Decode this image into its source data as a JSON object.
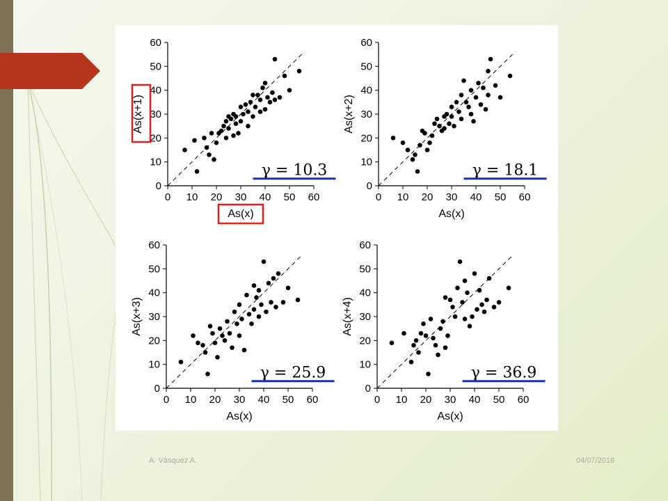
{
  "footer": {
    "author": "A. Vásquez A.",
    "date": "04/07/2018"
  },
  "colors": {
    "sidebar": "#7d7255",
    "arrow": "#b5361c",
    "highlight_box": "#e02020",
    "gamma_underline": "#1a2fb0",
    "points": "#000000"
  },
  "chart_data": [
    {
      "type": "scatter",
      "xlabel": "As(x)",
      "ylabel": "As(x+1)",
      "xlim": [
        0,
        60
      ],
      "ylim": [
        0,
        60
      ],
      "xticks": [
        0,
        10,
        20,
        30,
        40,
        50,
        60
      ],
      "yticks": [
        0,
        10,
        20,
        30,
        40,
        50,
        60
      ],
      "reference_line": "y = x (dashed)",
      "annotation": "γ = 10.3",
      "highlight_labels": true,
      "points": [
        [
          7,
          15
        ],
        [
          11,
          19
        ],
        [
          12,
          6
        ],
        [
          15,
          20
        ],
        [
          16,
          16
        ],
        [
          17,
          13
        ],
        [
          18,
          22
        ],
        [
          19,
          11
        ],
        [
          20,
          18
        ],
        [
          21,
          22
        ],
        [
          22,
          23
        ],
        [
          23,
          25
        ],
        [
          24,
          27
        ],
        [
          24,
          20
        ],
        [
          25,
          29
        ],
        [
          25,
          24
        ],
        [
          26,
          28
        ],
        [
          27,
          30
        ],
        [
          27,
          21
        ],
        [
          28,
          29
        ],
        [
          28,
          26
        ],
        [
          29,
          22
        ],
        [
          30,
          33
        ],
        [
          30,
          27
        ],
        [
          31,
          30
        ],
        [
          32,
          34
        ],
        [
          33,
          31
        ],
        [
          33,
          25
        ],
        [
          34,
          35
        ],
        [
          35,
          38
        ],
        [
          35,
          29
        ],
        [
          36,
          33
        ],
        [
          37,
          38
        ],
        [
          38,
          31
        ],
        [
          38,
          36
        ],
        [
          39,
          41
        ],
        [
          40,
          43
        ],
        [
          40,
          32
        ],
        [
          41,
          37
        ],
        [
          42,
          35
        ],
        [
          43,
          39
        ],
        [
          44,
          53
        ],
        [
          44,
          36
        ],
        [
          46,
          37
        ],
        [
          48,
          46
        ],
        [
          50,
          40
        ],
        [
          54,
          48
        ]
      ]
    },
    {
      "type": "scatter",
      "xlabel": "As(x)",
      "ylabel": "As(x+2)",
      "xlim": [
        0,
        60
      ],
      "ylim": [
        0,
        60
      ],
      "xticks": [
        0,
        10,
        20,
        30,
        40,
        50,
        60
      ],
      "yticks": [
        0,
        10,
        20,
        30,
        40,
        50,
        60
      ],
      "reference_line": "y = x (dashed)",
      "annotation": "γ = 18.1",
      "highlight_labels": false,
      "points": [
        [
          6,
          20
        ],
        [
          10,
          18
        ],
        [
          12,
          15
        ],
        [
          14,
          11
        ],
        [
          15,
          13
        ],
        [
          16,
          6
        ],
        [
          17,
          17
        ],
        [
          18,
          23
        ],
        [
          19,
          22
        ],
        [
          20,
          15
        ],
        [
          21,
          18
        ],
        [
          22,
          21
        ],
        [
          23,
          26
        ],
        [
          24,
          28
        ],
        [
          25,
          25
        ],
        [
          26,
          23
        ],
        [
          27,
          29
        ],
        [
          27,
          24
        ],
        [
          28,
          30
        ],
        [
          29,
          26
        ],
        [
          30,
          33
        ],
        [
          30,
          29
        ],
        [
          31,
          25
        ],
        [
          32,
          35
        ],
        [
          33,
          31
        ],
        [
          34,
          38
        ],
        [
          34,
          28
        ],
        [
          35,
          44
        ],
        [
          36,
          35
        ],
        [
          37,
          33
        ],
        [
          38,
          40
        ],
        [
          38,
          30
        ],
        [
          39,
          27
        ],
        [
          40,
          37
        ],
        [
          41,
          43
        ],
        [
          42,
          34
        ],
        [
          43,
          41
        ],
        [
          44,
          32
        ],
        [
          45,
          48
        ],
        [
          45,
          38
        ],
        [
          46,
          53
        ],
        [
          48,
          42
        ],
        [
          50,
          37
        ],
        [
          54,
          46
        ]
      ]
    },
    {
      "type": "scatter",
      "xlabel": "As(x)",
      "ylabel": "As(x+3)",
      "xlim": [
        0,
        60
      ],
      "ylim": [
        0,
        60
      ],
      "xticks": [
        0,
        10,
        20,
        30,
        40,
        50,
        60
      ],
      "yticks": [
        0,
        10,
        20,
        30,
        40,
        50,
        60
      ],
      "reference_line": "y = x (dashed)",
      "annotation": "γ = 25.9",
      "highlight_labels": false,
      "points": [
        [
          6,
          11
        ],
        [
          11,
          22
        ],
        [
          13,
          19
        ],
        [
          15,
          18
        ],
        [
          16,
          15
        ],
        [
          17,
          6
        ],
        [
          18,
          26
        ],
        [
          19,
          23
        ],
        [
          20,
          19
        ],
        [
          21,
          13
        ],
        [
          22,
          25
        ],
        [
          23,
          22
        ],
        [
          24,
          20
        ],
        [
          25,
          28
        ],
        [
          26,
          23
        ],
        [
          27,
          17
        ],
        [
          28,
          32
        ],
        [
          29,
          27
        ],
        [
          30,
          35
        ],
        [
          30,
          22
        ],
        [
          31,
          29
        ],
        [
          32,
          16
        ],
        [
          33,
          39
        ],
        [
          34,
          31
        ],
        [
          35,
          27
        ],
        [
          36,
          43
        ],
        [
          36,
          33
        ],
        [
          37,
          38
        ],
        [
          38,
          41
        ],
        [
          38,
          30
        ],
        [
          39,
          35
        ],
        [
          40,
          53
        ],
        [
          41,
          32
        ],
        [
          42,
          44
        ],
        [
          43,
          36
        ],
        [
          44,
          46
        ],
        [
          45,
          34
        ],
        [
          46,
          48
        ],
        [
          48,
          36
        ],
        [
          50,
          42
        ],
        [
          54,
          37
        ]
      ]
    },
    {
      "type": "scatter",
      "xlabel": "As(x)",
      "ylabel": "As(x+4)",
      "xlim": [
        0,
        60
      ],
      "ylim": [
        0,
        60
      ],
      "xticks": [
        0,
        10,
        20,
        30,
        40,
        50,
        60
      ],
      "yticks": [
        0,
        10,
        20,
        30,
        40,
        50,
        60
      ],
      "reference_line": "y = x (dashed)",
      "annotation": "γ = 36.9",
      "highlight_labels": false,
      "points": [
        [
          6,
          19
        ],
        [
          11,
          23
        ],
        [
          14,
          11
        ],
        [
          15,
          18
        ],
        [
          16,
          20
        ],
        [
          17,
          15
        ],
        [
          18,
          23
        ],
        [
          19,
          27
        ],
        [
          20,
          22
        ],
        [
          21,
          6
        ],
        [
          22,
          29
        ],
        [
          23,
          21
        ],
        [
          24,
          18
        ],
        [
          25,
          14
        ],
        [
          26,
          25
        ],
        [
          27,
          28
        ],
        [
          28,
          17
        ],
        [
          28,
          38
        ],
        [
          29,
          22
        ],
        [
          30,
          37
        ],
        [
          31,
          34
        ],
        [
          32,
          30
        ],
        [
          33,
          42
        ],
        [
          34,
          53
        ],
        [
          35,
          36
        ],
        [
          36,
          45
        ],
        [
          36,
          29
        ],
        [
          37,
          40
        ],
        [
          38,
          26
        ],
        [
          39,
          30
        ],
        [
          40,
          48
        ],
        [
          41,
          33
        ],
        [
          42,
          41
        ],
        [
          43,
          35
        ],
        [
          44,
          32
        ],
        [
          45,
          37
        ],
        [
          46,
          46
        ],
        [
          48,
          34
        ],
        [
          50,
          36
        ],
        [
          54,
          42
        ]
      ]
    }
  ]
}
